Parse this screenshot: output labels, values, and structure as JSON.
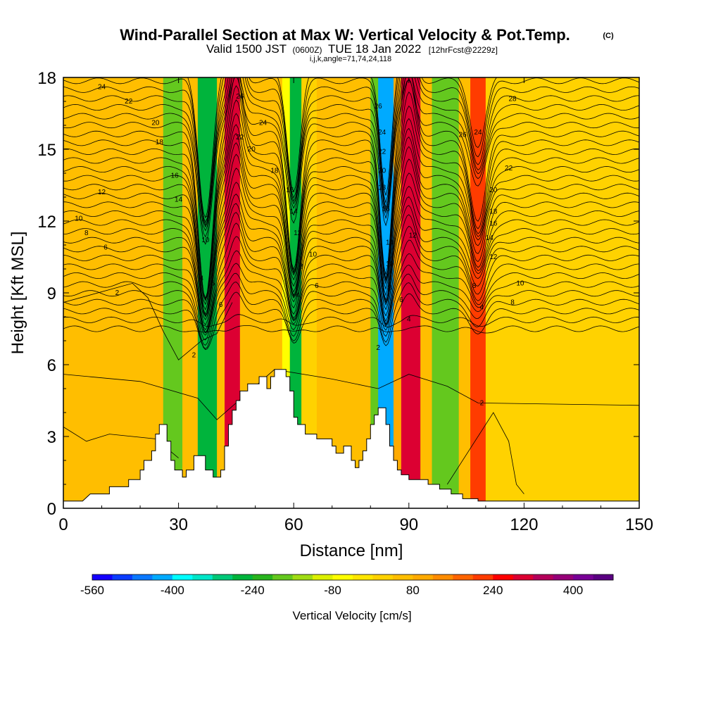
{
  "title": "Wind-Parallel Section at Max W: Vertical Velocity & Pot.Temp.",
  "title_mark": "(C)",
  "subtitle_pre": "Valid 1500 JST",
  "subtitle_mid": "(0600Z)",
  "subtitle_post": "TUE 18 Jan 2022",
  "subtitle_fcst": "[12hrFcst@2229z]",
  "subtitle_line2": "i,j,k,angle=71,74,24,118",
  "chart_data": {
    "type": "heatmap",
    "xlabel": "Distance [nm]",
    "ylabel": "Height [Kft MSL]",
    "xlim": [
      0,
      150
    ],
    "ylim": [
      0,
      18
    ],
    "x_ticks": [
      0,
      30,
      60,
      90,
      120,
      150
    ],
    "y_ticks": [
      0,
      3,
      6,
      9,
      12,
      15,
      18
    ],
    "colorbar": {
      "label": "Vertical Velocity [cm/s]",
      "tick_labels": [
        "-560",
        "-400",
        "-240",
        "-80",
        "80",
        "240",
        "400"
      ],
      "colors": [
        "#1400ff",
        "#0a3cff",
        "#0a78ff",
        "#00aaff",
        "#00ffff",
        "#00e6c8",
        "#00c878",
        "#00b43c",
        "#28b41e",
        "#64c81e",
        "#a0dc14",
        "#dcf000",
        "#ffff00",
        "#ffe600",
        "#ffd200",
        "#ffbe00",
        "#ffaa00",
        "#ff8c00",
        "#ff6400",
        "#ff3c00",
        "#ff0000",
        "#dc0032",
        "#b4005a",
        "#960078",
        "#780096",
        "#5a0082"
      ]
    },
    "vertical_velocity_bands": [
      {
        "x": [
          0,
          22
        ],
        "w": 60
      },
      {
        "x": [
          22,
          26
        ],
        "w": 40
      },
      {
        "x": [
          26,
          31
        ],
        "w": -180
      },
      {
        "x": [
          31,
          35
        ],
        "w": 40
      },
      {
        "x": [
          35,
          40
        ],
        "w": -280
      },
      {
        "x": [
          40,
          42
        ],
        "w": 60
      },
      {
        "x": [
          42,
          46
        ],
        "w": 290
      },
      {
        "x": [
          46,
          57
        ],
        "w": 60
      },
      {
        "x": [
          57,
          59
        ],
        "w": -60
      },
      {
        "x": [
          59,
          62
        ],
        "w": -260
      },
      {
        "x": [
          62,
          66
        ],
        "w": 0
      },
      {
        "x": [
          66,
          80
        ],
        "w": 60
      },
      {
        "x": [
          80,
          82
        ],
        "w": -200
      },
      {
        "x": [
          82,
          86
        ],
        "w": -430
      },
      {
        "x": [
          86,
          88
        ],
        "w": 80
      },
      {
        "x": [
          88,
          93
        ],
        "w": 280
      },
      {
        "x": [
          93,
          96
        ],
        "w": 60
      },
      {
        "x": [
          96,
          103
        ],
        "w": -200
      },
      {
        "x": [
          103,
          106
        ],
        "w": 60
      },
      {
        "x": [
          106,
          110
        ],
        "w": 200
      },
      {
        "x": [
          110,
          114
        ],
        "w": 0
      },
      {
        "x": [
          114,
          150
        ],
        "w": 0
      }
    ],
    "terrain_kft": [
      [
        0,
        0.3
      ],
      [
        5,
        0.3
      ],
      [
        7,
        0.6
      ],
      [
        12,
        0.6
      ],
      [
        12,
        0.9
      ],
      [
        17,
        0.9
      ],
      [
        17,
        1.2
      ],
      [
        20,
        1.2
      ],
      [
        20,
        1.6
      ],
      [
        21,
        1.6
      ],
      [
        21,
        2.0
      ],
      [
        23,
        2.0
      ],
      [
        23,
        2.4
      ],
      [
        24,
        2.4
      ],
      [
        24,
        3.1
      ],
      [
        25,
        3.1
      ],
      [
        25,
        3.5
      ],
      [
        27,
        3.5
      ],
      [
        27,
        2.8
      ],
      [
        28,
        2.8
      ],
      [
        28,
        2.0
      ],
      [
        29,
        2.0
      ],
      [
        29,
        1.6
      ],
      [
        31,
        1.6
      ],
      [
        31,
        1.3
      ],
      [
        32,
        1.3
      ],
      [
        32,
        1.6
      ],
      [
        34,
        1.6
      ],
      [
        34,
        2.2
      ],
      [
        37,
        2.2
      ],
      [
        37,
        1.6
      ],
      [
        39,
        1.6
      ],
      [
        39,
        1.3
      ],
      [
        41,
        1.3
      ],
      [
        41,
        1.6
      ],
      [
        42,
        1.6
      ],
      [
        42,
        2.6
      ],
      [
        43,
        2.6
      ],
      [
        43,
        3.5
      ],
      [
        44,
        3.5
      ],
      [
        44,
        4.1
      ],
      [
        45,
        4.1
      ],
      [
        45,
        4.5
      ],
      [
        46,
        4.5
      ],
      [
        46,
        4.9
      ],
      [
        48,
        4.9
      ],
      [
        48,
        5.2
      ],
      [
        51,
        5.2
      ],
      [
        51,
        5.5
      ],
      [
        53,
        5.5
      ],
      [
        53,
        5.0
      ],
      [
        54,
        5.0
      ],
      [
        54,
        5.5
      ],
      [
        55,
        5.5
      ],
      [
        55,
        5.8
      ],
      [
        58,
        5.8
      ],
      [
        58,
        5.5
      ],
      [
        59,
        5.5
      ],
      [
        59,
        4.9
      ],
      [
        60,
        4.9
      ],
      [
        60,
        3.8
      ],
      [
        61,
        3.8
      ],
      [
        61,
        3.5
      ],
      [
        63,
        3.5
      ],
      [
        63,
        3.1
      ],
      [
        66,
        3.1
      ],
      [
        66,
        2.9
      ],
      [
        70,
        2.9
      ],
      [
        70,
        2.6
      ],
      [
        71,
        2.6
      ],
      [
        71,
        2.3
      ],
      [
        73,
        2.3
      ],
      [
        73,
        2.6
      ],
      [
        75,
        2.6
      ],
      [
        75,
        2.0
      ],
      [
        76,
        2.0
      ],
      [
        76,
        1.7
      ],
      [
        77,
        1.7
      ],
      [
        77,
        2.0
      ],
      [
        78,
        2.0
      ],
      [
        78,
        2.4
      ],
      [
        79,
        2.4
      ],
      [
        79,
        2.9
      ],
      [
        80,
        2.9
      ],
      [
        80,
        3.5
      ],
      [
        81,
        3.5
      ],
      [
        81,
        3.9
      ],
      [
        82,
        3.9
      ],
      [
        82,
        4.2
      ],
      [
        84,
        4.2
      ],
      [
        84,
        3.5
      ],
      [
        85,
        3.5
      ],
      [
        85,
        2.6
      ],
      [
        86,
        2.6
      ],
      [
        86,
        2.0
      ],
      [
        87,
        2.0
      ],
      [
        87,
        1.6
      ],
      [
        88,
        1.6
      ],
      [
        88,
        1.4
      ],
      [
        90,
        1.4
      ],
      [
        90,
        1.2
      ],
      [
        95,
        1.2
      ],
      [
        95,
        1.0
      ],
      [
        98,
        1.0
      ],
      [
        98,
        0.8
      ],
      [
        101,
        0.8
      ],
      [
        101,
        0.6
      ],
      [
        104,
        0.6
      ],
      [
        104,
        0.4
      ],
      [
        108,
        0.4
      ],
      [
        108,
        0.3
      ],
      [
        150,
        0.3
      ]
    ],
    "contour_labels": [
      {
        "t": "24",
        "x": 10,
        "y": 17.6
      },
      {
        "t": "22",
        "x": 17,
        "y": 17.0
      },
      {
        "t": "20",
        "x": 24,
        "y": 16.1
      },
      {
        "t": "18",
        "x": 25,
        "y": 15.3
      },
      {
        "t": "16",
        "x": 29,
        "y": 13.9
      },
      {
        "t": "14",
        "x": 30,
        "y": 12.9
      },
      {
        "t": "12",
        "x": 10,
        "y": 13.2
      },
      {
        "t": "10",
        "x": 4,
        "y": 12.1
      },
      {
        "t": "8",
        "x": 6,
        "y": 11.5
      },
      {
        "t": "6",
        "x": 11,
        "y": 10.9
      },
      {
        "t": "2",
        "x": 14,
        "y": 9.0
      },
      {
        "t": "12",
        "x": 37,
        "y": 12.1
      },
      {
        "t": "10",
        "x": 37,
        "y": 11.2
      },
      {
        "t": "4",
        "x": 36,
        "y": 9.6
      },
      {
        "t": "6",
        "x": 39,
        "y": 9.4
      },
      {
        "t": "6",
        "x": 41,
        "y": 8.5
      },
      {
        "t": "2",
        "x": 34,
        "y": 6.4
      },
      {
        "t": "26",
        "x": 46,
        "y": 17.2
      },
      {
        "t": "22",
        "x": 46,
        "y": 15.5
      },
      {
        "t": "24",
        "x": 52,
        "y": 16.1
      },
      {
        "t": "20",
        "x": 49,
        "y": 15.0
      },
      {
        "t": "18",
        "x": 55,
        "y": 14.1
      },
      {
        "t": "16",
        "x": 59,
        "y": 13.3
      },
      {
        "t": "14",
        "x": 60,
        "y": 12.4
      },
      {
        "t": "12",
        "x": 61,
        "y": 11.5
      },
      {
        "t": "10",
        "x": 65,
        "y": 10.6
      },
      {
        "t": "8",
        "x": 62,
        "y": 10.1
      },
      {
        "t": "6",
        "x": 66,
        "y": 9.3
      },
      {
        "t": "4",
        "x": 61,
        "y": 8.9
      },
      {
        "t": "26",
        "x": 82,
        "y": 16.8
      },
      {
        "t": "24",
        "x": 83,
        "y": 15.7
      },
      {
        "t": "22",
        "x": 83,
        "y": 14.9
      },
      {
        "t": "20",
        "x": 83,
        "y": 14.1
      },
      {
        "t": "18",
        "x": 83,
        "y": 13.4
      },
      {
        "t": "16",
        "x": 84,
        "y": 12.5
      },
      {
        "t": "14",
        "x": 85,
        "y": 11.1
      },
      {
        "t": "12",
        "x": 91,
        "y": 11.4
      },
      {
        "t": "10",
        "x": 85,
        "y": 10.2
      },
      {
        "t": "8",
        "x": 85,
        "y": 9.2
      },
      {
        "t": "6",
        "x": 88,
        "y": 8.7
      },
      {
        "t": "4",
        "x": 90,
        "y": 7.9
      },
      {
        "t": "2",
        "x": 82,
        "y": 6.7
      },
      {
        "t": "28",
        "x": 117,
        "y": 17.1
      },
      {
        "t": "26",
        "x": 104,
        "y": 15.6
      },
      {
        "t": "24",
        "x": 108,
        "y": 15.7
      },
      {
        "t": "22",
        "x": 116,
        "y": 14.2
      },
      {
        "t": "20",
        "x": 112,
        "y": 13.3
      },
      {
        "t": "18",
        "x": 112,
        "y": 12.4
      },
      {
        "t": "16",
        "x": 112,
        "y": 11.9
      },
      {
        "t": "14",
        "x": 111,
        "y": 11.3
      },
      {
        "t": "12",
        "x": 112,
        "y": 10.5
      },
      {
        "t": "10",
        "x": 119,
        "y": 9.4
      },
      {
        "t": "8",
        "x": 107,
        "y": 9.3
      },
      {
        "t": "8",
        "x": 117,
        "y": 8.6
      },
      {
        "t": "4",
        "x": 109,
        "y": 8.4
      },
      {
        "t": "2",
        "x": 109,
        "y": 4.4
      }
    ]
  }
}
